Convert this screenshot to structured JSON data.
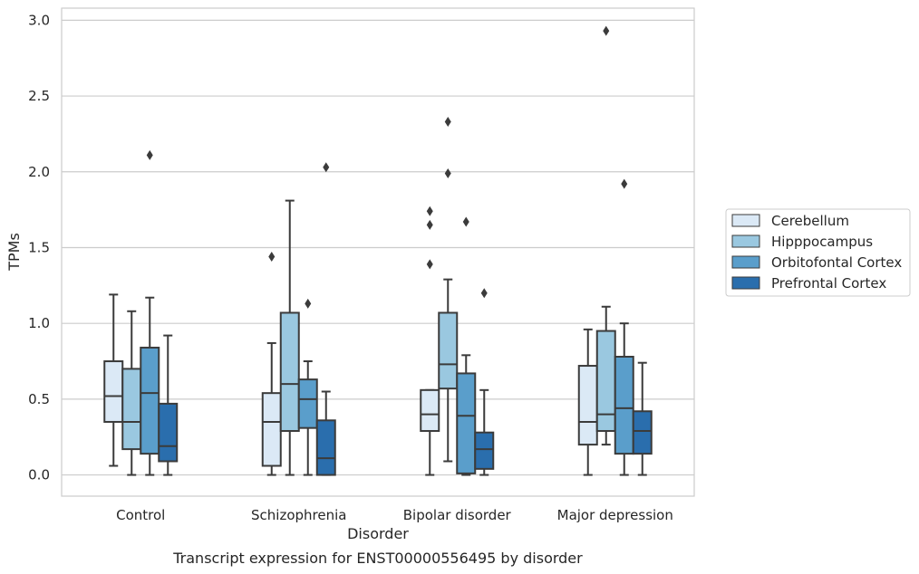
{
  "chart_data": {
    "type": "box",
    "caption": "Transcript expression for ENST00000556495 by disorder",
    "xlabel": "Disorder",
    "ylabel": "TPMs",
    "ylim": [
      -0.14,
      3.08
    ],
    "yticks": [
      "0.0",
      "0.5",
      "1.0",
      "1.5",
      "2.0",
      "2.5",
      "3.0"
    ],
    "grid": "horizontal",
    "legend_position": "right",
    "categories": [
      "Control",
      "Schizophrenia",
      "Bipolar disorder",
      "Major depression"
    ],
    "series": [
      {
        "name": "Cerebellum",
        "color": "#dbe9f6",
        "boxes": [
          {
            "whislo": 0.06,
            "q1": 0.35,
            "med": 0.52,
            "q3": 0.75,
            "whishi": 1.19,
            "fliers": []
          },
          {
            "whislo": 0.0,
            "q1": 0.06,
            "med": 0.35,
            "q3": 0.54,
            "whishi": 0.87,
            "fliers": [
              1.44
            ]
          },
          {
            "whislo": 0.0,
            "q1": 0.29,
            "med": 0.4,
            "q3": 0.56,
            "whishi": 0.56,
            "fliers": [
              1.39,
              1.65,
              1.74
            ]
          },
          {
            "whislo": 0.0,
            "q1": 0.2,
            "med": 0.35,
            "q3": 0.72,
            "whishi": 0.96,
            "fliers": []
          }
        ]
      },
      {
        "name": "Hipppocampus",
        "color": "#9ac8e0",
        "boxes": [
          {
            "whislo": 0.0,
            "q1": 0.17,
            "med": 0.35,
            "q3": 0.7,
            "whishi": 1.08,
            "fliers": []
          },
          {
            "whislo": 0.0,
            "q1": 0.29,
            "med": 0.6,
            "q3": 1.07,
            "whishi": 1.81,
            "fliers": []
          },
          {
            "whislo": 0.09,
            "q1": 0.57,
            "med": 0.73,
            "q3": 1.07,
            "whishi": 1.29,
            "fliers": [
              1.99,
              2.33
            ]
          },
          {
            "whislo": 0.2,
            "q1": 0.29,
            "med": 0.4,
            "q3": 0.95,
            "whishi": 1.11,
            "fliers": [
              2.93
            ]
          }
        ]
      },
      {
        "name": "Orbitofontal Cortex",
        "color": "#5a9ecb",
        "boxes": [
          {
            "whislo": 0.0,
            "q1": 0.14,
            "med": 0.54,
            "q3": 0.84,
            "whishi": 1.17,
            "fliers": [
              2.11
            ]
          },
          {
            "whislo": 0.0,
            "q1": 0.31,
            "med": 0.5,
            "q3": 0.63,
            "whishi": 0.75,
            "fliers": [
              1.13
            ]
          },
          {
            "whislo": 0.0,
            "q1": 0.01,
            "med": 0.39,
            "q3": 0.67,
            "whishi": 0.79,
            "fliers": [
              1.67
            ]
          },
          {
            "whislo": 0.0,
            "q1": 0.14,
            "med": 0.44,
            "q3": 0.78,
            "whishi": 1.0,
            "fliers": [
              1.92
            ]
          }
        ]
      },
      {
        "name": "Prefrontal Cortex",
        "color": "#2a6ead",
        "boxes": [
          {
            "whislo": 0.0,
            "q1": 0.09,
            "med": 0.19,
            "q3": 0.47,
            "whishi": 0.92,
            "fliers": []
          },
          {
            "whislo": 0.0,
            "q1": 0.0,
            "med": 0.11,
            "q3": 0.36,
            "whishi": 0.55,
            "fliers": [
              2.03
            ]
          },
          {
            "whislo": 0.0,
            "q1": 0.04,
            "med": 0.17,
            "q3": 0.28,
            "whishi": 0.56,
            "fliers": [
              1.2
            ]
          },
          {
            "whislo": 0.0,
            "q1": 0.14,
            "med": 0.29,
            "q3": 0.42,
            "whishi": 0.74,
            "fliers": []
          }
        ]
      }
    ]
  }
}
